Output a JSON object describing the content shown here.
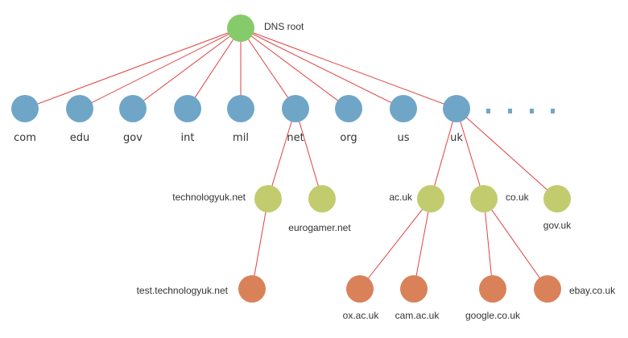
{
  "colors": {
    "root": "#86cb6a",
    "tld": "#6fa6c8",
    "second_level": "#c2cc6e",
    "third_level": "#d9825a",
    "edge": "#e04040",
    "ellipsis": "#6fa8c6"
  },
  "nodes": {
    "root": {
      "label": "DNS root",
      "level": "root"
    },
    "com": {
      "label": "com",
      "level": "tld"
    },
    "edu": {
      "label": "edu",
      "level": "tld"
    },
    "gov": {
      "label": "gov",
      "level": "tld"
    },
    "int": {
      "label": "int",
      "level": "tld"
    },
    "mil": {
      "label": "mil",
      "level": "tld"
    },
    "net": {
      "label": "net",
      "level": "tld"
    },
    "org": {
      "label": "org",
      "level": "tld"
    },
    "us": {
      "label": "us",
      "level": "tld"
    },
    "uk": {
      "label": "uk",
      "level": "tld"
    },
    "technologyuk": {
      "label": "technologyuk.net",
      "level": "second_level"
    },
    "eurogamer": {
      "label": "eurogamer.net",
      "level": "second_level"
    },
    "ac_uk": {
      "label": "ac.uk",
      "level": "second_level"
    },
    "co_uk": {
      "label": "co.uk",
      "level": "second_level"
    },
    "gov_uk": {
      "label": "gov.uk",
      "level": "second_level"
    },
    "test_tech": {
      "label": "test.technologyuk.net",
      "level": "third_level"
    },
    "ox": {
      "label": "ox.ac.uk",
      "level": "third_level"
    },
    "cam": {
      "label": "cam.ac.uk",
      "level": "third_level"
    },
    "google": {
      "label": "google.co.uk",
      "level": "third_level"
    },
    "ebay": {
      "label": "ebay.co.uk",
      "level": "third_level"
    }
  },
  "edges": [
    [
      "root",
      "com"
    ],
    [
      "root",
      "edu"
    ],
    [
      "root",
      "gov"
    ],
    [
      "root",
      "int"
    ],
    [
      "root",
      "mil"
    ],
    [
      "root",
      "net"
    ],
    [
      "root",
      "org"
    ],
    [
      "root",
      "us"
    ],
    [
      "root",
      "uk"
    ],
    [
      "net",
      "technologyuk"
    ],
    [
      "net",
      "eurogamer"
    ],
    [
      "uk",
      "ac_uk"
    ],
    [
      "uk",
      "co_uk"
    ],
    [
      "uk",
      "gov_uk"
    ],
    [
      "technologyuk",
      "test_tech"
    ],
    [
      "ac_uk",
      "ox"
    ],
    [
      "ac_uk",
      "cam"
    ],
    [
      "co_uk",
      "google"
    ],
    [
      "co_uk",
      "ebay"
    ]
  ]
}
